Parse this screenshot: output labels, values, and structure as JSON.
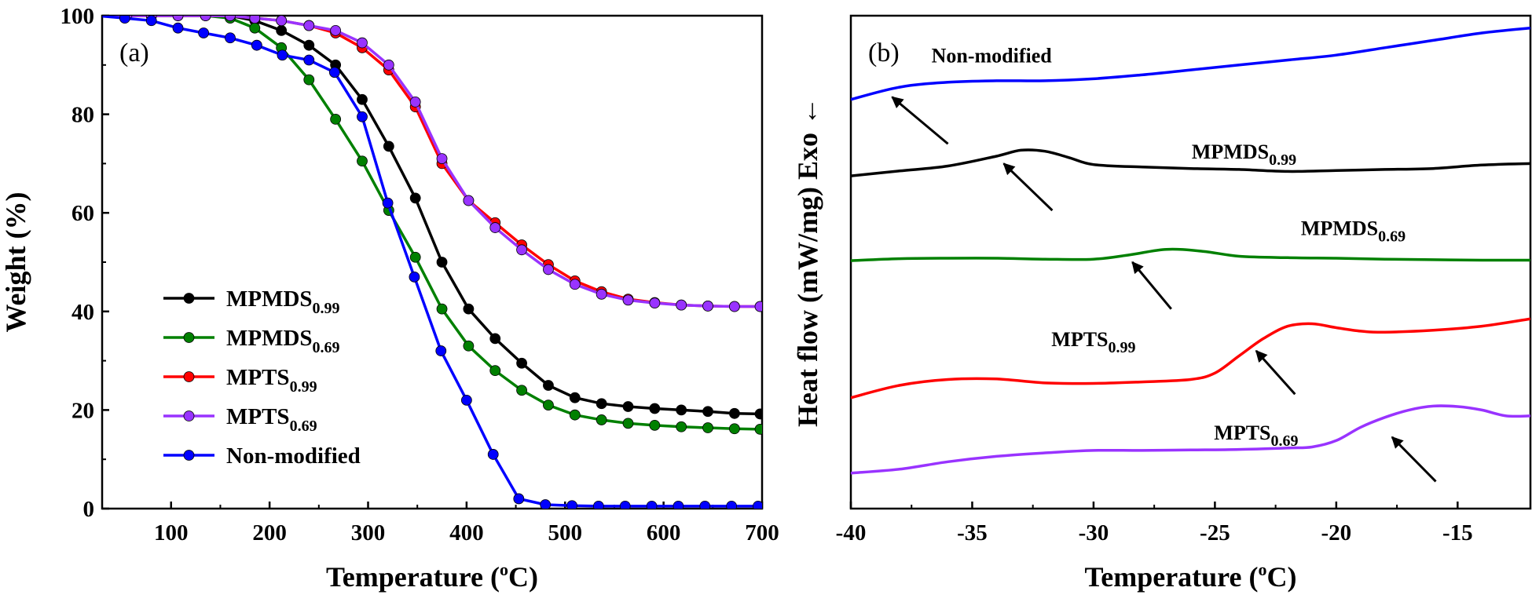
{
  "chart_data": [
    {
      "panel_label": "(a)",
      "type": "line",
      "xlabel": "Temperature (",
      "xlabel_sup": "o",
      "xlabel_end": "C)",
      "ylabel": "Weight (%)",
      "xlim": [
        30,
        700
      ],
      "ylim": [
        0,
        100
      ],
      "xticks": [
        100,
        200,
        300,
        400,
        500,
        600,
        700
      ],
      "yticks": [
        0,
        20,
        40,
        60,
        80,
        100
      ],
      "legend_position": "bottom-left",
      "series": [
        {
          "name_base": "MPMDS",
          "name_sub": "0.99",
          "color": "#000000",
          "points": [
            [
              25,
              100
            ],
            [
              55,
              100
            ],
            [
              80,
              100
            ],
            [
              107,
              100
            ],
            [
              135,
              100
            ],
            [
              160,
              100
            ],
            [
              185,
              99
            ],
            [
              212,
              97
            ],
            [
              240,
              94
            ],
            [
              267,
              90
            ],
            [
              294,
              83
            ],
            [
              321,
              73.5
            ],
            [
              348,
              63
            ],
            [
              375,
              50
            ],
            [
              402,
              40.5
            ],
            [
              429,
              34.5
            ],
            [
              456,
              29.5
            ],
            [
              483,
              25
            ],
            [
              510,
              22.5
            ],
            [
              537,
              21.3
            ],
            [
              564,
              20.7
            ],
            [
              591,
              20.3
            ],
            [
              618,
              20
            ],
            [
              645,
              19.7
            ],
            [
              672,
              19.3
            ],
            [
              698,
              19.2
            ]
          ]
        },
        {
          "name_base": "MPMDS",
          "name_sub": "0.69",
          "color": "#008000",
          "points": [
            [
              25,
              100
            ],
            [
              55,
              100
            ],
            [
              80,
              100
            ],
            [
              107,
              100
            ],
            [
              135,
              100
            ],
            [
              160,
              99.5
            ],
            [
              185,
              97.5
            ],
            [
              212,
              93.5
            ],
            [
              240,
              87
            ],
            [
              267,
              79
            ],
            [
              294,
              70.5
            ],
            [
              321,
              60.5
            ],
            [
              348,
              51
            ],
            [
              375,
              40.5
            ],
            [
              402,
              33
            ],
            [
              429,
              28
            ],
            [
              456,
              24
            ],
            [
              483,
              21
            ],
            [
              510,
              19
            ],
            [
              537,
              18
            ],
            [
              564,
              17.3
            ],
            [
              591,
              16.9
            ],
            [
              618,
              16.6
            ],
            [
              645,
              16.4
            ],
            [
              672,
              16.2
            ],
            [
              698,
              16.1
            ]
          ]
        },
        {
          "name_base": "MPTS",
          "name_sub": "0.99",
          "color": "#ff0000",
          "points": [
            [
              25,
              100
            ],
            [
              55,
              100
            ],
            [
              80,
              100
            ],
            [
              107,
              100
            ],
            [
              135,
              100
            ],
            [
              160,
              100
            ],
            [
              185,
              99.5
            ],
            [
              212,
              99
            ],
            [
              240,
              98
            ],
            [
              267,
              96.5
            ],
            [
              294,
              93.5
            ],
            [
              321,
              89
            ],
            [
              348,
              81.5
            ],
            [
              375,
              70
            ],
            [
              402,
              62.5
            ],
            [
              429,
              58
            ],
            [
              456,
              53.5
            ],
            [
              483,
              49.5
            ],
            [
              510,
              46.2
            ],
            [
              537,
              44
            ],
            [
              564,
              42.5
            ],
            [
              591,
              41.8
            ],
            [
              618,
              41.3
            ],
            [
              645,
              41.1
            ],
            [
              672,
              41
            ],
            [
              698,
              41
            ]
          ]
        },
        {
          "name_base": "MPTS",
          "name_sub": "0.69",
          "color": "#9933ff",
          "points": [
            [
              25,
              100
            ],
            [
              55,
              100
            ],
            [
              80,
              100
            ],
            [
              107,
              100
            ],
            [
              135,
              100
            ],
            [
              160,
              100
            ],
            [
              185,
              99.5
            ],
            [
              212,
              99
            ],
            [
              240,
              98
            ],
            [
              267,
              97
            ],
            [
              294,
              94.5
            ],
            [
              321,
              90
            ],
            [
              348,
              82.5
            ],
            [
              375,
              71
            ],
            [
              402,
              62.5
            ],
            [
              429,
              57
            ],
            [
              456,
              52.5
            ],
            [
              483,
              48.5
            ],
            [
              510,
              45.5
            ],
            [
              537,
              43.5
            ],
            [
              564,
              42.3
            ],
            [
              591,
              41.7
            ],
            [
              618,
              41.3
            ],
            [
              645,
              41.1
            ],
            [
              672,
              41
            ],
            [
              698,
              41
            ]
          ]
        },
        {
          "name_base": "Non-modified",
          "name_sub": "",
          "color": "#0000ff",
          "points": [
            [
              25,
              100
            ],
            [
              53,
              99.5
            ],
            [
              80,
              99
            ],
            [
              107,
              97.5
            ],
            [
              133,
              96.5
            ],
            [
              160,
              95.5
            ],
            [
              187,
              94
            ],
            [
              213,
              92
            ],
            [
              240,
              91
            ],
            [
              266,
              88.5
            ],
            [
              294,
              79.5
            ],
            [
              320,
              62
            ],
            [
              347,
              47
            ],
            [
              374,
              32
            ],
            [
              400,
              22
            ],
            [
              427,
              11
            ],
            [
              453,
              2
            ],
            [
              480,
              0.8
            ],
            [
              507,
              0.6
            ],
            [
              534,
              0.5
            ],
            [
              561,
              0.5
            ],
            [
              588,
              0.5
            ],
            [
              615,
              0.5
            ],
            [
              642,
              0.5
            ],
            [
              669,
              0.5
            ],
            [
              696,
              0.5
            ]
          ]
        }
      ]
    },
    {
      "panel_label": "(b)",
      "type": "line",
      "xlabel": "Temperature (",
      "xlabel_sup": "o",
      "xlabel_end": "C)",
      "ylabel": "Heat flow (mW/mg) Exo ←",
      "xlim": [
        -40,
        -12
      ],
      "ylim": [
        0,
        100
      ],
      "y_unlabeled": true,
      "xticks": [
        -40,
        -35,
        -30,
        -25,
        -20,
        -15
      ],
      "series": [
        {
          "name_base": "Non-modified",
          "name_sub": "",
          "color": "#0000ff",
          "label_x": -34.2,
          "label_y": 90.5,
          "arrow": {
            "from": [
              -36,
              74
            ],
            "to": [
              -38.3,
              83.5
            ]
          },
          "points": [
            [
              -40,
              83
            ],
            [
              -38,
              85.5
            ],
            [
              -36,
              86.5
            ],
            [
              -34,
              86.8
            ],
            [
              -32,
              86.8
            ],
            [
              -30,
              87.2
            ],
            [
              -28,
              88
            ],
            [
              -26,
              89
            ],
            [
              -24,
              90
            ],
            [
              -22,
              91
            ],
            [
              -20,
              92
            ],
            [
              -18,
              93.5
            ],
            [
              -16,
              95
            ],
            [
              -14,
              96.5
            ],
            [
              -12,
              97.5
            ]
          ]
        },
        {
          "name_base": "MPMDS",
          "name_sub": "0.99",
          "color": "#000000",
          "label_x": -23.8,
          "label_y": 71,
          "arrow": {
            "from": [
              -31.7,
              60.5
            ],
            "to": [
              -33.7,
              70
            ]
          },
          "points": [
            [
              -40,
              67.5
            ],
            [
              -38,
              68.5
            ],
            [
              -36,
              69.5
            ],
            [
              -34,
              71.5
            ],
            [
              -33,
              72.7
            ],
            [
              -32,
              72.5
            ],
            [
              -31,
              71.2
            ],
            [
              -30,
              69.8
            ],
            [
              -28,
              69.3
            ],
            [
              -26,
              69
            ],
            [
              -24,
              68.8
            ],
            [
              -22,
              68.4
            ],
            [
              -20,
              68.6
            ],
            [
              -18,
              68.8
            ],
            [
              -16,
              69
            ],
            [
              -14,
              69.7
            ],
            [
              -12,
              70
            ]
          ]
        },
        {
          "name_base": "MPMDS",
          "name_sub": "0.69",
          "color": "#008000",
          "label_x": -19.3,
          "label_y": 55.5,
          "arrow": {
            "from": [
              -26.8,
              40.5
            ],
            "to": [
              -28.4,
              50
            ]
          },
          "points": [
            [
              -40,
              50.3
            ],
            [
              -38,
              50.7
            ],
            [
              -36,
              50.8
            ],
            [
              -34,
              50.8
            ],
            [
              -32,
              50.6
            ],
            [
              -30,
              50.6
            ],
            [
              -28.5,
              51.5
            ],
            [
              -27,
              52.6
            ],
            [
              -25.5,
              52.2
            ],
            [
              -24,
              51.2
            ],
            [
              -22,
              50.9
            ],
            [
              -20,
              50.8
            ],
            [
              -18,
              50.6
            ],
            [
              -16,
              50.5
            ],
            [
              -14,
              50.4
            ],
            [
              -12,
              50.4
            ]
          ]
        },
        {
          "name_base": "MPTS",
          "name_sub": "0.99",
          "color": "#ff0000",
          "label_x": -30,
          "label_y": 33,
          "arrow": {
            "from": [
              -21.7,
              23.2
            ],
            "to": [
              -23.3,
              32
            ]
          },
          "points": [
            [
              -40,
              22.5
            ],
            [
              -38,
              25
            ],
            [
              -36,
              26.2
            ],
            [
              -34,
              26.3
            ],
            [
              -32,
              25.5
            ],
            [
              -30,
              25.4
            ],
            [
              -28,
              25.7
            ],
            [
              -26,
              26.2
            ],
            [
              -25,
              27.5
            ],
            [
              -24,
              31
            ],
            [
              -23,
              34.5
            ],
            [
              -22,
              37
            ],
            [
              -21,
              37.5
            ],
            [
              -20,
              36.7
            ],
            [
              -19,
              36
            ],
            [
              -18,
              35.8
            ],
            [
              -16,
              36.2
            ],
            [
              -14,
              37
            ],
            [
              -12,
              38.5
            ]
          ]
        },
        {
          "name_base": "MPTS",
          "name_sub": "0.69",
          "color": "#9933ff",
          "label_x": -23.3,
          "label_y": 14,
          "arrow": {
            "from": [
              -15.9,
              5.5
            ],
            "to": [
              -17.7,
              14.5
            ]
          },
          "points": [
            [
              -40,
              7.2
            ],
            [
              -38,
              8
            ],
            [
              -36,
              9.5
            ],
            [
              -34,
              10.6
            ],
            [
              -32,
              11.3
            ],
            [
              -30,
              11.8
            ],
            [
              -28,
              11.8
            ],
            [
              -26,
              11.9
            ],
            [
              -24,
              12
            ],
            [
              -22,
              12.3
            ],
            [
              -21,
              12.5
            ],
            [
              -20,
              13.8
            ],
            [
              -19,
              16.5
            ],
            [
              -18,
              18.5
            ],
            [
              -17,
              20
            ],
            [
              -16,
              20.8
            ],
            [
              -15,
              20.7
            ],
            [
              -14,
              20
            ],
            [
              -13,
              18.8
            ],
            [
              -12,
              18.8
            ]
          ]
        }
      ]
    }
  ]
}
